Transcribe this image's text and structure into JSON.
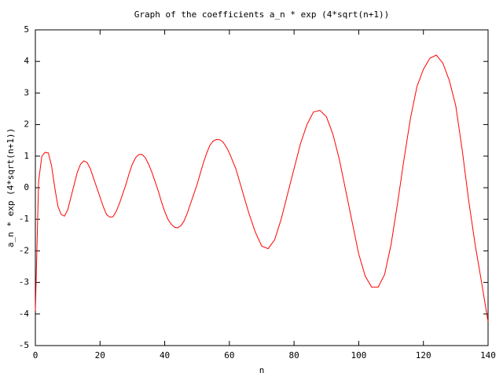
{
  "chart_data": {
    "type": "line",
    "title": "Graph of the coefficients a_n * exp (4*sqrt(n+1))",
    "x_label": "n",
    "y_label": "a_n * exp (4*sqrt(n+1))",
    "color": "#ff0000",
    "x": [
      0,
      1,
      2,
      3,
      4,
      5,
      6,
      7,
      8,
      9,
      10,
      11,
      12,
      13,
      14,
      15,
      16,
      17,
      18,
      19,
      20,
      21,
      22,
      23,
      24,
      25,
      26,
      27,
      28,
      29,
      30,
      31,
      32,
      33,
      34,
      35,
      36,
      37,
      38,
      39,
      40,
      41,
      42,
      43,
      44,
      45,
      46,
      47,
      48,
      49,
      50,
      51,
      52,
      53,
      54,
      55,
      56,
      57,
      58,
      59,
      60,
      62,
      64,
      66,
      68,
      70,
      72,
      74,
      76,
      78,
      80,
      82,
      84,
      86,
      88,
      90,
      92,
      94,
      96,
      98,
      100,
      102,
      104,
      106,
      108,
      110,
      112,
      114,
      116,
      118,
      120,
      122,
      124,
      126,
      128,
      130,
      132,
      134,
      136,
      138,
      140
    ],
    "values": [
      -3.9,
      0.2,
      1.0,
      1.12,
      1.1,
      0.7,
      0,
      -0.6,
      -0.85,
      -0.9,
      -0.7,
      -0.3,
      0.1,
      0.5,
      0.75,
      0.85,
      0.8,
      0.6,
      0.3,
      0,
      -0.3,
      -0.6,
      -0.85,
      -0.93,
      -0.92,
      -0.75,
      -0.5,
      -0.2,
      0.1,
      0.45,
      0.75,
      0.95,
      1.05,
      1.05,
      0.95,
      0.75,
      0.5,
      0.2,
      -0.1,
      -0.45,
      -0.75,
      -1.0,
      -1.15,
      -1.25,
      -1.27,
      -1.2,
      -1.05,
      -0.8,
      -0.5,
      -0.2,
      0.1,
      0.45,
      0.8,
      1.1,
      1.35,
      1.48,
      1.53,
      1.52,
      1.45,
      1.3,
      1.1,
      0.6,
      -0.1,
      -0.8,
      -1.4,
      -1.85,
      -1.93,
      -1.65,
      -1.0,
      -0.2,
      0.6,
      1.4,
      2.0,
      2.4,
      2.45,
      2.25,
      1.7,
      0.9,
      -0.1,
      -1.1,
      -2.1,
      -2.8,
      -3.15,
      -3.15,
      -2.75,
      -1.8,
      -0.5,
      0.9,
      2.2,
      3.2,
      3.75,
      4.1,
      4.2,
      3.95,
      3.4,
      2.6,
      1.2,
      -0.4,
      -1.8,
      -3.0,
      -4.25
    ],
    "xlim": [
      0,
      140
    ],
    "xticks": [
      0,
      20,
      40,
      60,
      80,
      100,
      120,
      140
    ],
    "ylim": [
      -5,
      5
    ],
    "yticks": [
      -5,
      -4,
      -3,
      -2,
      -1,
      0,
      1,
      2,
      3,
      4,
      5
    ],
    "grid": false
  }
}
